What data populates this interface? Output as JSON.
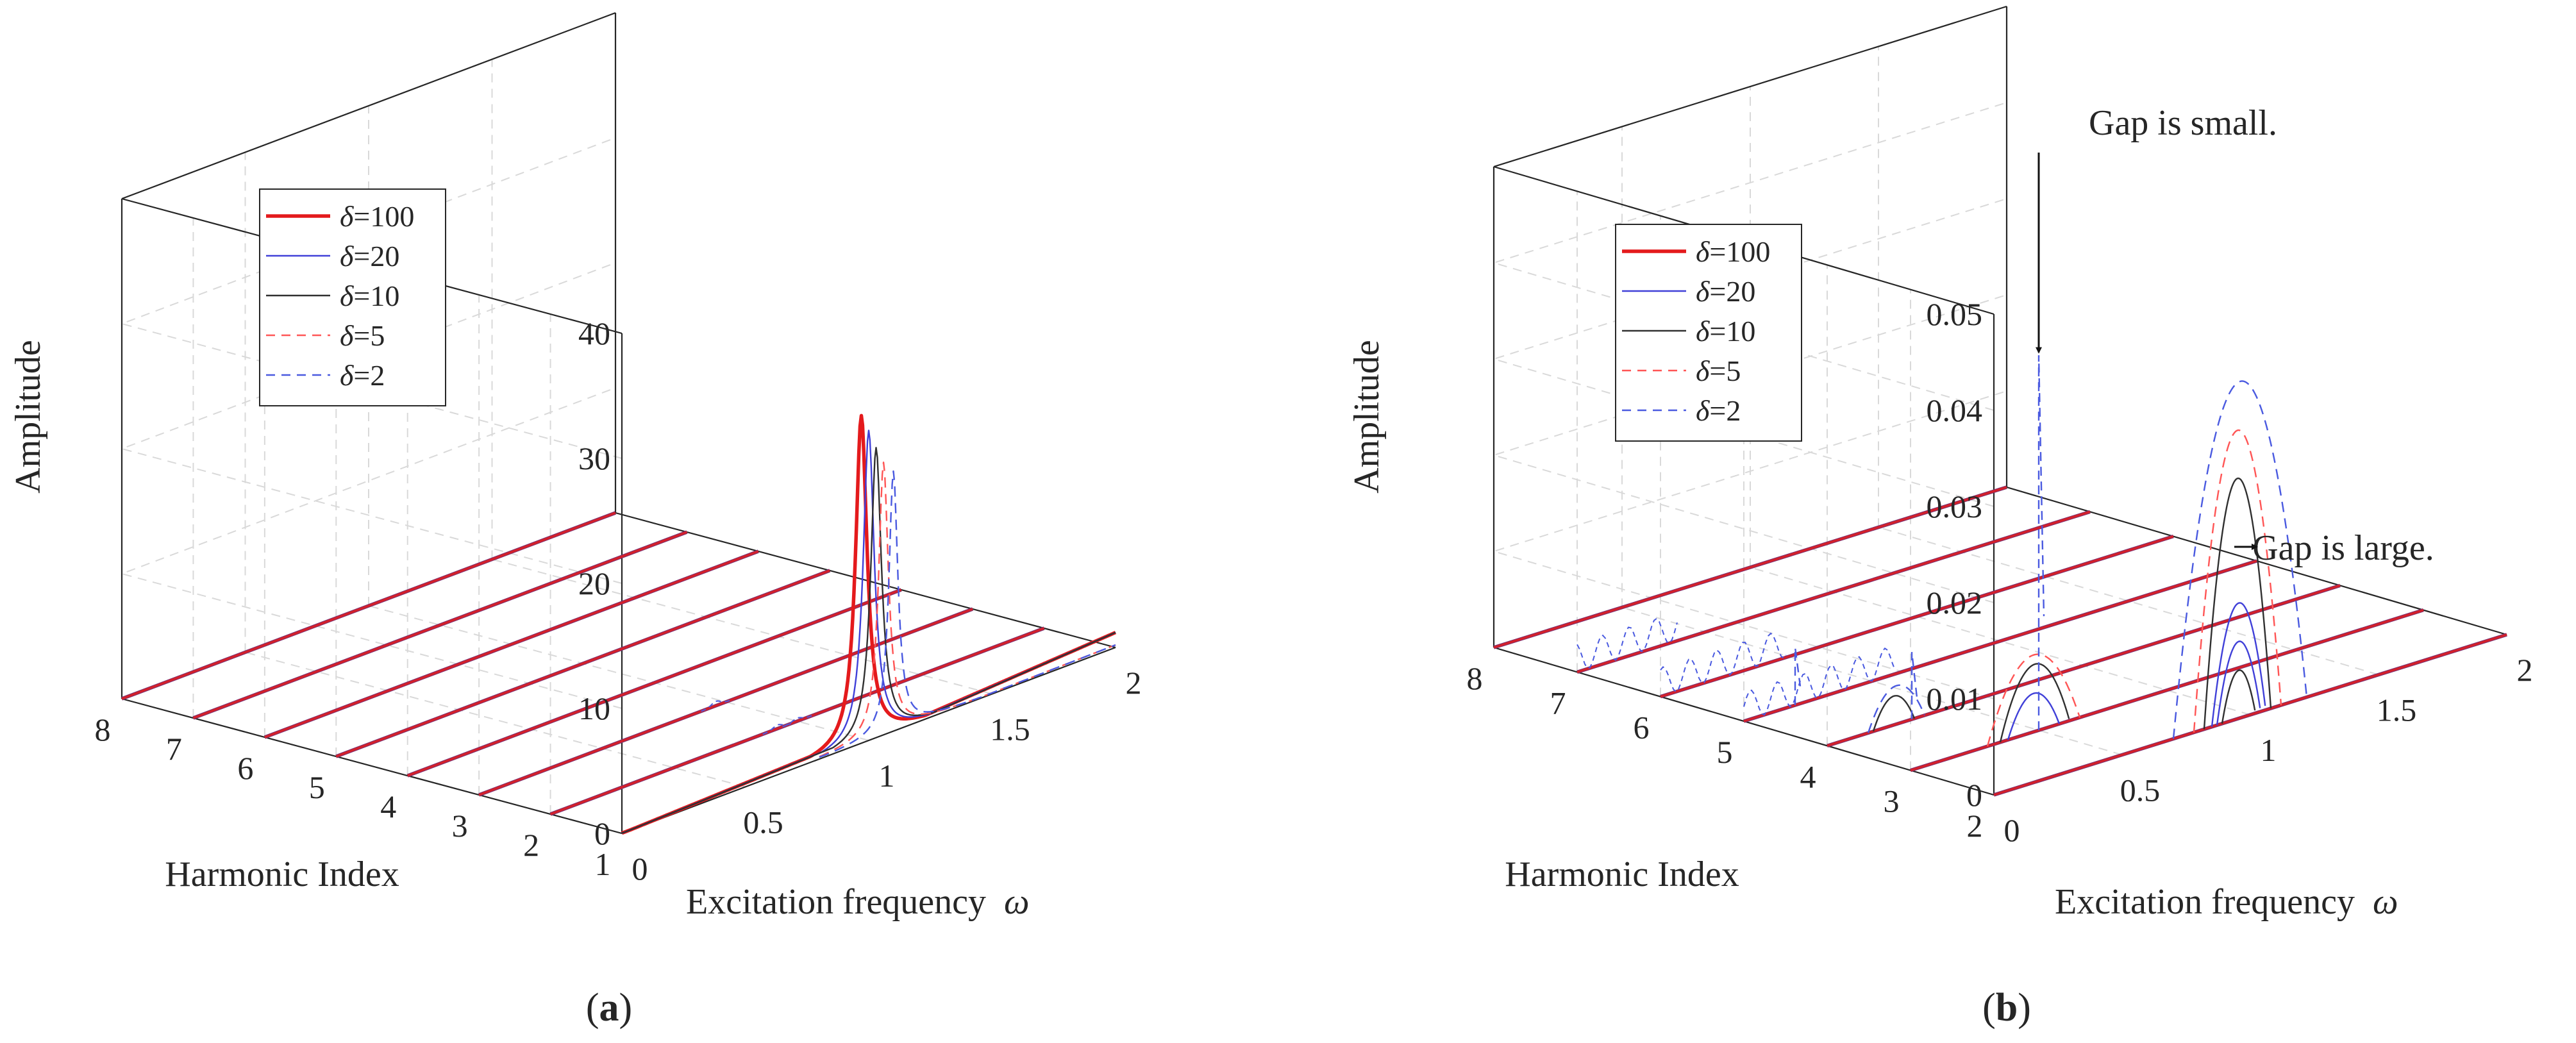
{
  "chart_data": [
    {
      "panel": "a",
      "caption_open": "(",
      "caption_letter": "a",
      "caption_close": ")",
      "type": "line",
      "projection": "3d",
      "xlabel": "Excitation frequency",
      "xlabel_symbol": "ω",
      "ylabel": "Harmonic Index",
      "zlabel": "Amplitude",
      "xlim": [
        0,
        2
      ],
      "ylim": [
        1,
        8
      ],
      "zlim": [
        0,
        40
      ],
      "x_ticks": [
        "0",
        "0.5",
        "1",
        "1.5",
        "2"
      ],
      "y_ticks": [
        "1",
        "2",
        "3",
        "4",
        "5",
        "6",
        "7",
        "8"
      ],
      "z_ticks": [
        "0",
        "10",
        "20",
        "30",
        "40"
      ],
      "grid": true,
      "legend_position": "upper-left",
      "series": [
        {
          "name": "δ=100",
          "symbol": "δ",
          "value": "=100",
          "color": "#e41a1c",
          "style": "solid",
          "width": 5.5,
          "peak_x": 0.97,
          "peak_z": 26.2,
          "gamma": 0.028,
          "base_x": 0,
          "base_z": 0.6,
          "tail_z": 1.2
        },
        {
          "name": "δ=20",
          "symbol": "δ",
          "value": "=20",
          "color": "#4040d8",
          "style": "solid",
          "width": 2.4,
          "peak_x": 1.0,
          "peak_z": 24.8,
          "gamma": 0.027,
          "base_x": 0,
          "base_z": 0.6,
          "tail_z": 1.2
        },
        {
          "name": "δ=10",
          "symbol": "δ",
          "value": "=10",
          "color": "#303030",
          "style": "solid",
          "width": 2.4,
          "peak_x": 1.03,
          "peak_z": 23.2,
          "gamma": 0.026,
          "base_x": 0,
          "base_z": 0.6,
          "tail_z": 1.2
        },
        {
          "name": "δ=5",
          "symbol": "δ",
          "value": "=5",
          "color": "#ff5555",
          "style": "dashed",
          "width": 2.4,
          "peak_x": 1.06,
          "peak_z": 21.8,
          "gamma": 0.024,
          "base_x": 0.8,
          "base_z": 0.2,
          "tail_z": 0.2
        },
        {
          "name": "δ=2",
          "symbol": "δ",
          "value": "=2",
          "color": "#4a5ae0",
          "style": "dashed",
          "width": 2.4,
          "peak_x": 1.1,
          "peak_z": 20.8,
          "gamma": 0.022,
          "base_x": 0.8,
          "base_z": 0.2,
          "tail_z": 0.2
        }
      ],
      "baseline_harmonics": [
        2,
        3,
        4,
        5,
        6,
        7,
        8
      ]
    },
    {
      "panel": "b",
      "caption_open": "(",
      "caption_letter": "b",
      "caption_close": ")",
      "type": "line",
      "projection": "3d",
      "xlabel": "Excitation frequency",
      "xlabel_symbol": "ω",
      "ylabel": "Harmonic Index",
      "zlabel": "Amplitude",
      "xlim": [
        0,
        2
      ],
      "ylim": [
        2,
        8
      ],
      "zlim": [
        0,
        0.05
      ],
      "x_ticks": [
        "0",
        "0.5",
        "1",
        "1.5",
        "2"
      ],
      "y_ticks": [
        "2",
        "3",
        "4",
        "5",
        "6",
        "7",
        "8"
      ],
      "z_ticks": [
        "0",
        "0.01",
        "0.02",
        "0.03",
        "0.04",
        "0.05"
      ],
      "grid": true,
      "legend_position": "upper-left",
      "series": [
        {
          "name": "δ=100",
          "symbol": "δ",
          "value": "=100",
          "color": "#e41a1c",
          "style": "solid",
          "width": 5.5
        },
        {
          "name": "δ=20",
          "symbol": "δ",
          "value": "=20",
          "color": "#4040d8",
          "style": "solid",
          "width": 2.4
        },
        {
          "name": "δ=10",
          "symbol": "δ",
          "value": "=10",
          "color": "#303030",
          "style": "solid",
          "width": 2.4
        },
        {
          "name": "δ=5",
          "symbol": "δ",
          "value": "=5",
          "color": "#ff5555",
          "style": "dashed",
          "width": 2.4
        },
        {
          "name": "δ=2",
          "symbol": "δ",
          "value": "=2",
          "color": "#4a5ae0",
          "style": "dashed",
          "width": 2.4
        }
      ],
      "baseline_harmonics": [
        2,
        3,
        4,
        5,
        6,
        7,
        8
      ],
      "arches": [
        {
          "harmonic": 2,
          "x0": 0.82,
          "x1": 1.08,
          "peak": 0.025,
          "color": "#303030",
          "style": "solid",
          "width": 2.4
        },
        {
          "harmonic": 2,
          "x0": 0.85,
          "x1": 1.06,
          "peak": 0.012,
          "color": "#4040d8",
          "style": "solid",
          "width": 2.4
        },
        {
          "harmonic": 2,
          "x0": 0.87,
          "x1": 1.04,
          "peak": 0.008,
          "color": "#4040d8",
          "style": "solid",
          "width": 2.4
        },
        {
          "harmonic": 2,
          "x0": 0.89,
          "x1": 1.02,
          "peak": 0.005,
          "color": "#303030",
          "style": "solid",
          "width": 2.4
        },
        {
          "harmonic": 2,
          "x0": 0.78,
          "x1": 1.12,
          "peak": 0.03,
          "color": "#ff5555",
          "style": "dashed",
          "width": 2.4
        },
        {
          "harmonic": 2,
          "x0": 0.7,
          "x1": 1.22,
          "peak": 0.035,
          "color": "#4a5ae0",
          "style": "dashed",
          "width": 2.4
        },
        {
          "harmonic": 3,
          "x0": 0.35,
          "x1": 0.62,
          "peak": 0.007,
          "color": "#303030",
          "style": "solid",
          "width": 2.4
        },
        {
          "harmonic": 3,
          "x0": 0.38,
          "x1": 0.58,
          "peak": 0.004,
          "color": "#4040d8",
          "style": "solid",
          "width": 2.4
        },
        {
          "harmonic": 3,
          "x0": 0.3,
          "x1": 0.66,
          "peak": 0.008,
          "color": "#ff5555",
          "style": "dashed",
          "width": 2.4
        },
        {
          "harmonic": 4,
          "x0": 0.18,
          "x1": 0.34,
          "peak": 0.003,
          "color": "#303030",
          "style": "solid",
          "width": 2.4
        },
        {
          "harmonic": 4,
          "x0": 0.16,
          "x1": 0.38,
          "peak": 0.004,
          "color": "#4a5ae0",
          "style": "dashed",
          "width": 2.4
        }
      ],
      "spikes": [
        {
          "harmonic": 3,
          "x": 0.5,
          "peak": 0.039,
          "color": "#4a5ae0",
          "style": "dashed"
        },
        {
          "harmonic": 4,
          "x": 0.33,
          "peak": 0.007,
          "color": "#4a5ae0",
          "style": "dashed"
        },
        {
          "harmonic": 5,
          "x": 0.2,
          "peak": 0.006,
          "color": "#4a5ae0",
          "style": "dashed"
        }
      ],
      "annotations": [
        {
          "text": "Gap is small.",
          "target": "δ=2 peak at harmonic 3",
          "placement": "above"
        },
        {
          "text": "Gap is large.",
          "target": "δ=20 arch at harmonic 2",
          "placement": "right"
        }
      ]
    }
  ]
}
